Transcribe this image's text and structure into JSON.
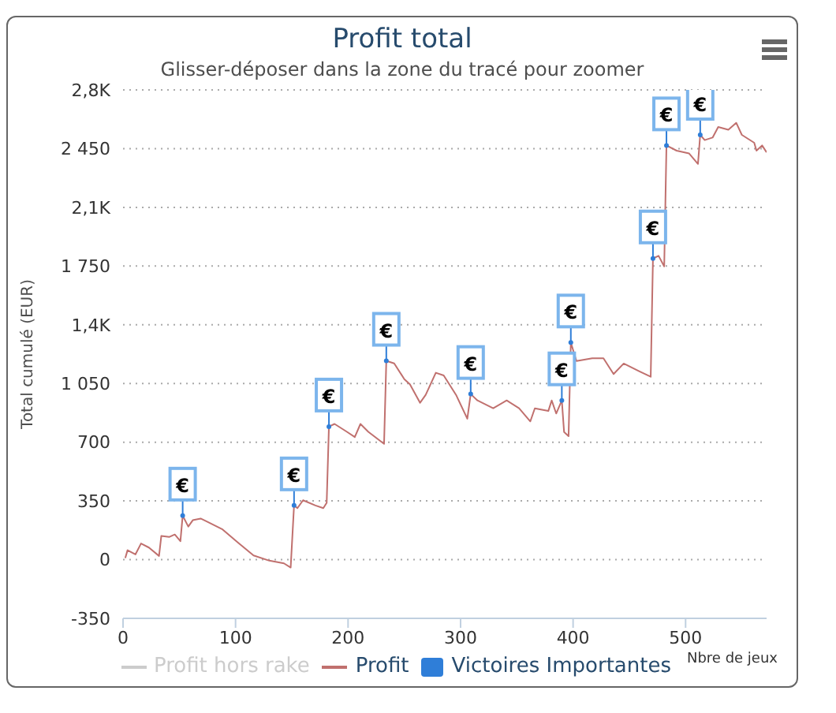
{
  "chart_data": {
    "type": "line",
    "title": "Profit total",
    "subtitle": "Glisser-déposer dans la zone du tracé pour zoomer",
    "xlabel": "Nbre de jeux",
    "ylabel": "Total cumulé (EUR)",
    "xlim": [
      0,
      572
    ],
    "xticks": [
      0,
      100,
      200,
      300,
      400,
      500
    ],
    "ylim": [
      -350,
      2800
    ],
    "yticks": [
      -350,
      0,
      350,
      700,
      {
        "value": 1050,
        "label": "1 050"
      },
      {
        "value": 1400,
        "label": "1,4K"
      },
      {
        "value": 1750,
        "label": "1 750"
      },
      {
        "value": 2100,
        "label": "2,1K"
      },
      {
        "value": 2450,
        "label": "2 450"
      },
      {
        "value": 2800,
        "label": "2,8K"
      }
    ],
    "grid": "y",
    "legend": "bottom",
    "line_style": "solid",
    "series": [
      {
        "name": "Profit hors rake",
        "color": "#cccccc"
      },
      {
        "name": "Profit",
        "color": "#c0706e",
        "x": [
          2,
          4,
          11,
          16,
          23,
          32,
          34,
          41,
          46,
          51,
          53,
          58,
          62,
          69,
          74,
          88,
          102,
          116,
          130,
          143,
          149,
          152,
          155,
          160,
          171,
          178,
          181,
          183,
          188,
          199,
          206,
          211,
          218,
          232,
          234,
          241,
          250,
          255,
          264,
          269,
          278,
          285,
          296,
          306,
          309,
          315,
          329,
          341,
          352,
          362,
          366,
          378,
          381,
          385,
          390,
          392,
          396,
          398,
          403,
          417,
          427,
          436,
          445,
          459,
          469,
          471,
          476,
          481,
          483,
          492,
          503,
          511,
          513,
          517,
          524,
          529,
          538,
          545,
          550,
          561,
          563,
          568,
          572
        ],
        "values": [
          10,
          56,
          31,
          96,
          72,
          22,
          141,
          135,
          150,
          110,
          262,
          197,
          235,
          245,
          229,
          182,
          103,
          25,
          -6,
          -22,
          -47,
          323,
          307,
          354,
          323,
          307,
          339,
          793,
          809,
          762,
          731,
          809,
          762,
          690,
          1185,
          1170,
          1076,
          1045,
          935,
          982,
          1114,
          1098,
          982,
          840,
          987,
          949,
          902,
          949,
          902,
          824,
          902,
          886,
          949,
          871,
          949,
          761,
          736,
          1294,
          1184,
          1200,
          1200,
          1106,
          1169,
          1122,
          1090,
          1795,
          1811,
          1748,
          2469,
          2438,
          2422,
          2359,
          2532,
          2501,
          2516,
          2579,
          2563,
          2604,
          2532,
          2485,
          2438,
          2469,
          2428
        ]
      },
      {
        "name": "Victoires Importantes",
        "type": "scatter",
        "color": "#2f7ed8",
        "x": [
          53,
          152,
          183,
          234,
          309,
          390,
          398,
          471,
          483,
          513
        ],
        "values": [
          262,
          323,
          793,
          1185,
          987,
          949,
          1294,
          1795,
          2469,
          2532
        ],
        "value_labels": [
          "€",
          "€",
          "€",
          "€",
          "€",
          "€",
          "€",
          "€",
          "€",
          "€"
        ]
      }
    ]
  }
}
